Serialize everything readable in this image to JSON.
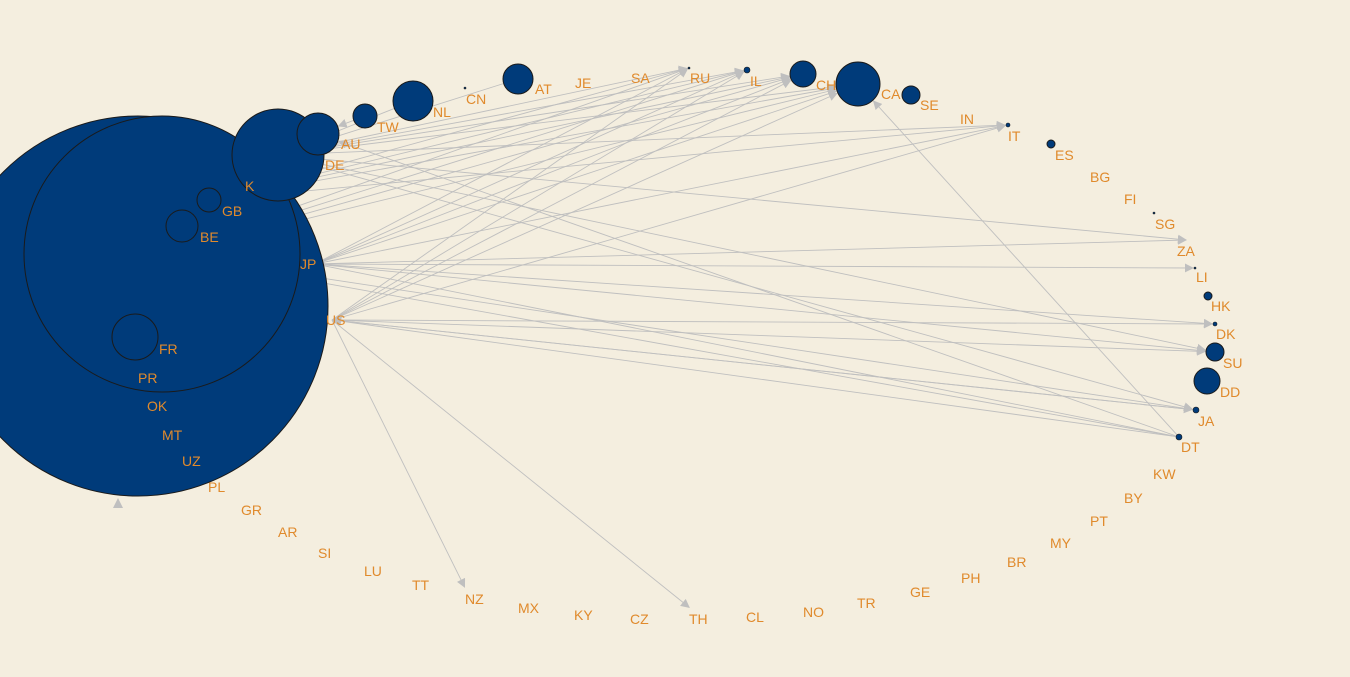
{
  "colors": {
    "background": "#f4eedf",
    "node_fill": "#003b7a",
    "node_stroke": "#1a1a1a",
    "edge": "#bfbfbf",
    "label": "#e08a2c"
  },
  "nodes": [
    {
      "id": "GB",
      "label": "GB"
    },
    {
      "id": "BE",
      "label": "BE"
    },
    {
      "id": "JP",
      "label": "JP"
    },
    {
      "id": "US",
      "label": "US"
    },
    {
      "id": "FR",
      "label": "FR"
    },
    {
      "id": "PR",
      "label": "PR"
    },
    {
      "id": "OK",
      "label": "OK"
    },
    {
      "id": "MT",
      "label": "MT"
    },
    {
      "id": "UZ",
      "label": "UZ"
    },
    {
      "id": "PL",
      "label": "PL"
    },
    {
      "id": "GR",
      "label": "GR"
    },
    {
      "id": "AR",
      "label": "AR"
    },
    {
      "id": "SI",
      "label": "SI"
    },
    {
      "id": "LU",
      "label": "LU"
    },
    {
      "id": "TT",
      "label": "TT"
    },
    {
      "id": "NZ",
      "label": "NZ"
    },
    {
      "id": "MX",
      "label": "MX"
    },
    {
      "id": "KY",
      "label": "KY"
    },
    {
      "id": "CZ",
      "label": "CZ"
    },
    {
      "id": "TH",
      "label": "TH"
    },
    {
      "id": "CL",
      "label": "CL"
    },
    {
      "id": "NO",
      "label": "NO"
    },
    {
      "id": "TR",
      "label": "TR"
    },
    {
      "id": "GE",
      "label": "GE"
    },
    {
      "id": "PH",
      "label": "PH"
    },
    {
      "id": "BR",
      "label": "BR"
    },
    {
      "id": "MY",
      "label": "MY"
    },
    {
      "id": "PT",
      "label": "PT"
    },
    {
      "id": "BY",
      "label": "BY"
    },
    {
      "id": "KW",
      "label": "KW"
    },
    {
      "id": "DT",
      "label": "DT"
    },
    {
      "id": "JA",
      "label": "JA"
    },
    {
      "id": "DD",
      "label": "DD"
    },
    {
      "id": "SU",
      "label": "SU"
    },
    {
      "id": "DK",
      "label": "DK"
    },
    {
      "id": "HK",
      "label": "HK"
    },
    {
      "id": "LI",
      "label": "LI"
    },
    {
      "id": "ZA",
      "label": "ZA"
    },
    {
      "id": "SG",
      "label": "SG"
    },
    {
      "id": "FI",
      "label": "FI"
    },
    {
      "id": "BG",
      "label": "BG"
    },
    {
      "id": "ES",
      "label": "ES"
    },
    {
      "id": "IT",
      "label": "IT"
    },
    {
      "id": "IN",
      "label": "IN"
    },
    {
      "id": "SE",
      "label": "SE"
    },
    {
      "id": "CA",
      "label": "CA"
    },
    {
      "id": "CH",
      "label": "CH"
    },
    {
      "id": "IL",
      "label": "IL"
    },
    {
      "id": "RU",
      "label": "RU"
    },
    {
      "id": "SA",
      "label": "SA"
    },
    {
      "id": "JE",
      "label": "JE"
    },
    {
      "id": "AT",
      "label": "AT"
    },
    {
      "id": "CN",
      "label": "CN"
    },
    {
      "id": "NL",
      "label": "NL"
    },
    {
      "id": "TW",
      "label": "TW"
    },
    {
      "id": "AU",
      "label": "AU"
    },
    {
      "id": "DE",
      "label": "DE"
    },
    {
      "id": "K",
      "label": "K"
    },
    {
      "id": "EP",
      "label": ""
    }
  ],
  "edges": [
    [
      "DE",
      "IL"
    ],
    [
      "DE",
      "RU"
    ],
    [
      "DE",
      "CH"
    ],
    [
      "DE",
      "CA"
    ],
    [
      "DE",
      "IT"
    ],
    [
      "DE",
      "SU"
    ],
    [
      "DE",
      "JA"
    ],
    [
      "DE",
      "ZA"
    ],
    [
      "JP",
      "IL"
    ],
    [
      "JP",
      "RU"
    ],
    [
      "JP",
      "CH"
    ],
    [
      "JP",
      "CA"
    ],
    [
      "JP",
      "IT"
    ],
    [
      "JP",
      "ZA"
    ],
    [
      "JP",
      "LI"
    ],
    [
      "JP",
      "DK"
    ],
    [
      "JP",
      "SU"
    ],
    [
      "US",
      "IL"
    ],
    [
      "US",
      "RU"
    ],
    [
      "US",
      "CH"
    ],
    [
      "US",
      "CA"
    ],
    [
      "US",
      "IT"
    ],
    [
      "US",
      "DK"
    ],
    [
      "US",
      "SU"
    ],
    [
      "US",
      "JA"
    ],
    [
      "US",
      "TH"
    ],
    [
      "US",
      "NZ"
    ],
    [
      "GB",
      "IL"
    ],
    [
      "GB",
      "CH"
    ],
    [
      "GB",
      "CA"
    ],
    [
      "GB",
      "IT"
    ],
    [
      "GB",
      "RU"
    ],
    [
      "K",
      "RU"
    ],
    [
      "K",
      "IL"
    ],
    [
      "K",
      "CH"
    ],
    [
      "K",
      "CA"
    ],
    [
      "DT",
      "JP"
    ],
    [
      "DT",
      "US"
    ],
    [
      "DT",
      "CA"
    ],
    [
      "DT",
      "K"
    ],
    [
      "DT",
      "AU"
    ],
    [
      "JA",
      "US"
    ],
    [
      "JA",
      "K"
    ],
    [
      "NL",
      "DE"
    ],
    [
      "AT",
      "DE"
    ],
    [
      "AU",
      "K"
    ],
    [
      "TW",
      "AU"
    ]
  ]
}
